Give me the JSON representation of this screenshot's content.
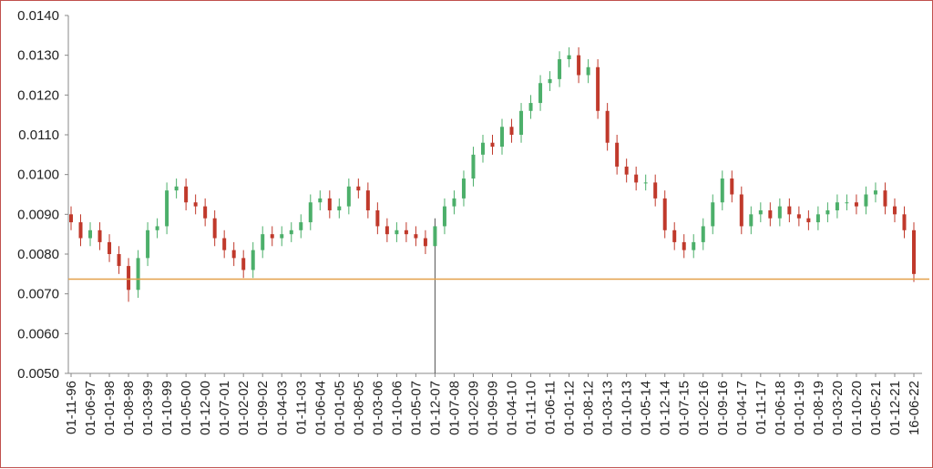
{
  "chart_data": {
    "type": "candlestick",
    "categories": [
      "01-11-96",
      null,
      "01-06-97",
      null,
      "01-01-98",
      null,
      "01-08-98",
      null,
      "01-03-99",
      null,
      "01-10-99",
      null,
      "01-05-00",
      null,
      "01-12-00",
      null,
      "01-07-01",
      null,
      "01-02-02",
      null,
      "01-09-02",
      null,
      "01-04-03",
      null,
      "01-11-03",
      null,
      "01-06-04",
      null,
      "01-01-05",
      null,
      "01-08-05",
      null,
      "01-03-06",
      null,
      "01-10-06",
      null,
      "01-05-07",
      null,
      "01-12-07",
      null,
      "01-07-08",
      null,
      "01-02-09",
      null,
      "01-09-09",
      null,
      "01-04-10",
      null,
      "01-11-10",
      null,
      "01-06-11",
      null,
      "01-01-12",
      null,
      "01-08-12",
      null,
      "01-03-13",
      null,
      "01-10-13",
      null,
      "01-05-14",
      null,
      "01-12-14",
      null,
      "01-07-15",
      null,
      "01-02-16",
      null,
      "01-09-16",
      null,
      "01-04-17",
      null,
      "01-11-17",
      null,
      "01-06-18",
      null,
      "01-01-19",
      null,
      "01-08-19",
      null,
      "01-03-20",
      null,
      "01-10-20",
      null,
      "01-05-21",
      null,
      "01-12-21",
      null,
      "16-06-22"
    ],
    "open": [
      0.009,
      0.0088,
      0.0084,
      0.0086,
      0.0083,
      0.008,
      0.0077,
      0.0071,
      0.0079,
      0.0086,
      0.0087,
      0.0096,
      0.0097,
      0.0093,
      0.0092,
      0.0089,
      0.0084,
      0.0081,
      0.0079,
      0.0076,
      0.0081,
      0.0085,
      0.0084,
      0.0085,
      0.0086,
      0.0088,
      0.0093,
      0.0094,
      0.0091,
      0.0092,
      0.0097,
      0.0096,
      0.0091,
      0.0087,
      0.0085,
      0.0086,
      0.0085,
      0.0084,
      0.0082,
      0.0087,
      0.0092,
      0.0094,
      0.0099,
      0.0105,
      0.0108,
      0.0107,
      0.0112,
      0.011,
      0.0116,
      0.0118,
      0.0123,
      0.0124,
      0.0129,
      0.013,
      0.0125,
      0.0127,
      0.0116,
      0.0108,
      0.0102,
      0.01,
      0.0098,
      0.0098,
      0.0094,
      0.0086,
      0.0083,
      0.0081,
      0.0083,
      0.0087,
      0.0093,
      0.0099,
      0.0095,
      0.0087,
      0.009,
      0.0091,
      0.0089,
      0.0092,
      0.009,
      0.0089,
      0.0088,
      0.009,
      0.0091,
      0.0093,
      0.0093,
      0.0092,
      0.0095,
      0.0096,
      0.0092,
      0.009,
      0.0086
    ],
    "high": [
      0.0092,
      0.009,
      0.0088,
      0.0088,
      0.0085,
      0.0082,
      0.0079,
      0.0081,
      0.0088,
      0.0089,
      0.0098,
      0.0099,
      0.0099,
      0.0095,
      0.0094,
      0.0091,
      0.0086,
      0.0083,
      0.0081,
      0.0083,
      0.0087,
      0.0087,
      0.0087,
      0.0088,
      0.009,
      0.0095,
      0.0096,
      0.0096,
      0.0094,
      0.0099,
      0.0099,
      0.0098,
      0.0093,
      0.0089,
      0.0088,
      0.0088,
      0.0087,
      0.0086,
      0.0089,
      0.0094,
      0.0096,
      0.0101,
      0.0107,
      0.011,
      0.011,
      0.0114,
      0.0114,
      0.0118,
      0.012,
      0.0125,
      0.0126,
      0.0131,
      0.0132,
      0.0132,
      0.0129,
      0.0129,
      0.0118,
      0.011,
      0.0104,
      0.0102,
      0.01,
      0.01,
      0.0096,
      0.0088,
      0.0085,
      0.0085,
      0.0089,
      0.0095,
      0.0101,
      0.0101,
      0.0097,
      0.0092,
      0.0093,
      0.0093,
      0.0094,
      0.0094,
      0.0092,
      0.0091,
      0.0092,
      0.0093,
      0.0095,
      0.0095,
      0.0095,
      0.0097,
      0.0098,
      0.0098,
      0.0094,
      0.0092,
      0.0088
    ],
    "low": [
      0.0086,
      0.0082,
      0.0082,
      0.0081,
      0.0078,
      0.0075,
      0.0068,
      0.0069,
      0.0077,
      0.0084,
      0.0085,
      0.0094,
      0.0091,
      0.009,
      0.0087,
      0.0082,
      0.0079,
      0.0077,
      0.0074,
      0.0074,
      0.0079,
      0.0082,
      0.0082,
      0.0083,
      0.0084,
      0.0086,
      0.0091,
      0.0089,
      0.0089,
      0.009,
      0.0094,
      0.0089,
      0.0085,
      0.0083,
      0.0083,
      0.0083,
      0.0082,
      0.008,
      0.005,
      0.0085,
      0.009,
      0.0092,
      0.0097,
      0.0103,
      0.0105,
      0.0105,
      0.0108,
      0.0108,
      0.0114,
      0.0116,
      0.0121,
      0.0122,
      0.0127,
      0.0123,
      0.0123,
      0.0114,
      0.0106,
      0.01,
      0.0098,
      0.0096,
      0.0096,
      0.0092,
      0.0084,
      0.0081,
      0.0079,
      0.0079,
      0.0081,
      0.0085,
      0.0091,
      0.0093,
      0.0085,
      0.0085,
      0.0088,
      0.0087,
      0.0087,
      0.0088,
      0.0087,
      0.0086,
      0.0086,
      0.0088,
      0.0089,
      0.0091,
      0.009,
      0.009,
      0.0093,
      0.009,
      0.0088,
      0.0084,
      0.0073
    ],
    "close": [
      0.0088,
      0.0084,
      0.0086,
      0.0083,
      0.008,
      0.0077,
      0.0071,
      0.0079,
      0.0086,
      0.0087,
      0.0096,
      0.0097,
      0.0093,
      0.0092,
      0.0089,
      0.0084,
      0.0081,
      0.0079,
      0.0076,
      0.0081,
      0.0085,
      0.0084,
      0.0085,
      0.0086,
      0.0088,
      0.0093,
      0.0094,
      0.0091,
      0.0092,
      0.0097,
      0.0096,
      0.0091,
      0.0087,
      0.0085,
      0.0086,
      0.0085,
      0.0084,
      0.0082,
      0.0087,
      0.0092,
      0.0094,
      0.0099,
      0.0105,
      0.0108,
      0.0107,
      0.0112,
      0.011,
      0.0116,
      0.0118,
      0.0123,
      0.0124,
      0.0129,
      0.013,
      0.0125,
      0.0127,
      0.0116,
      0.0108,
      0.0102,
      0.01,
      0.0098,
      0.0098,
      0.0094,
      0.0086,
      0.0083,
      0.0081,
      0.0083,
      0.0087,
      0.0093,
      0.0099,
      0.0095,
      0.0087,
      0.009,
      0.0091,
      0.0089,
      0.0092,
      0.009,
      0.0089,
      0.0088,
      0.009,
      0.0091,
      0.0093,
      0.0093,
      0.0092,
      0.0095,
      0.0096,
      0.0092,
      0.009,
      0.0086,
      0.0075
    ],
    "up_color": "#4caf6a",
    "down_color": "#c0392b",
    "hline": 0.00737,
    "hline_color": "#e3a04a",
    "ylim": [
      0.005,
      0.014
    ],
    "yticks": [
      {
        "value": 0.005,
        "label": "0.0050"
      },
      {
        "value": 0.006,
        "label": "0.0060"
      },
      {
        "value": 0.007,
        "label": "0.0070"
      },
      {
        "value": 0.008,
        "label": "0.0080"
      },
      {
        "value": 0.009,
        "label": "0.0090"
      },
      {
        "value": 0.01,
        "label": "0.0100"
      },
      {
        "value": 0.011,
        "label": "0.0110"
      },
      {
        "value": 0.012,
        "label": "0.0120"
      },
      {
        "value": 0.013,
        "label": "0.0130"
      },
      {
        "value": 0.014,
        "label": "0.0140"
      }
    ],
    "grid": false
  }
}
